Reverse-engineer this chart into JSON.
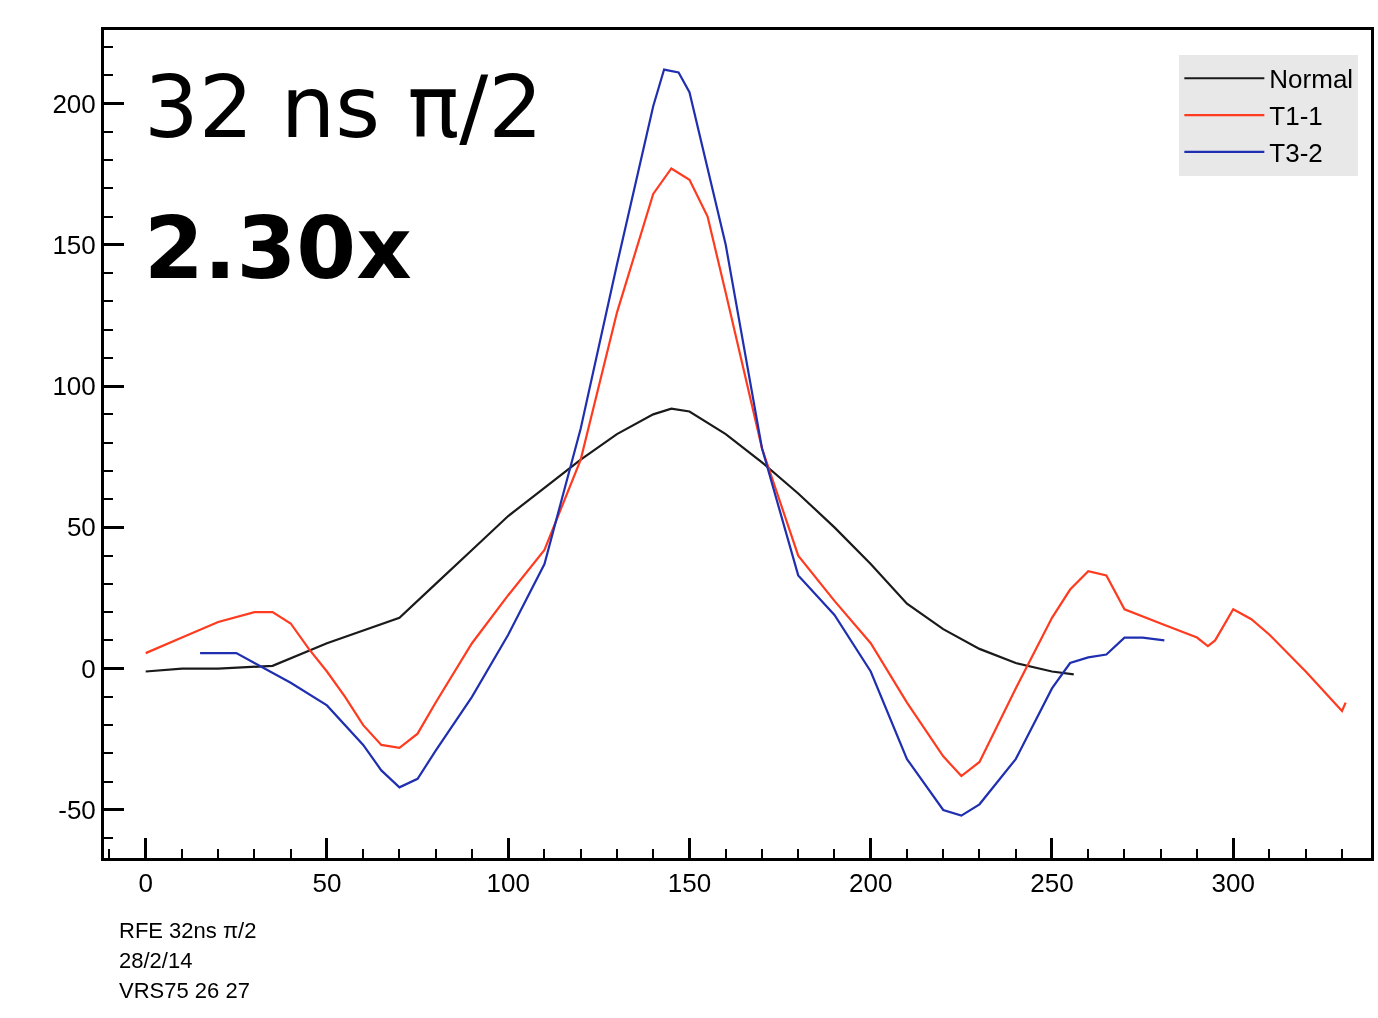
{
  "chart_data": {
    "type": "line",
    "xlim": [
      -11.5,
      338
    ],
    "ylim": [
      -67,
      226
    ],
    "xticks": [
      0,
      50,
      100,
      150,
      200,
      250,
      300
    ],
    "yticks": [
      -50,
      0,
      50,
      100,
      150,
      200
    ],
    "legend": "top right",
    "marker": "none",
    "line_style": "solid",
    "annotations": [
      "32 ns π/2",
      "2.30x",
      "RFE 32ns π/2",
      "28/2/14",
      "VRS75 26 27"
    ],
    "series": [
      {
        "name": "Normal",
        "color": "#1a1a1a",
        "x": [
          0,
          10,
          20,
          35,
          50,
          70,
          80,
          90,
          100,
          110,
          120,
          130,
          140,
          145,
          150,
          160,
          170,
          180,
          190,
          200,
          210,
          220,
          230,
          240,
          250,
          256
        ],
        "values": [
          -1,
          0,
          0,
          1,
          9,
          18,
          30,
          42,
          54,
          64,
          74,
          83,
          90,
          92,
          91,
          83,
          73,
          62,
          50,
          37,
          23,
          14,
          7,
          2,
          -1,
          -2
        ]
      },
      {
        "name": "T1-1",
        "color": "#ff3b1f",
        "x": [
          0,
          10,
          20,
          30,
          35,
          40,
          45,
          50,
          55,
          60,
          65,
          70,
          75,
          80,
          90,
          100,
          110,
          120,
          130,
          140,
          145,
          150,
          155,
          160,
          170,
          180,
          190,
          200,
          210,
          220,
          225,
          230,
          240,
          250,
          255,
          260,
          265,
          270,
          280,
          290,
          293,
          295,
          300,
          305,
          310,
          320,
          330,
          331
        ],
        "values": [
          5.5,
          11,
          16.5,
          20,
          20,
          16,
          7,
          -1,
          -10,
          -20,
          -27,
          -28,
          -23,
          -12,
          9,
          26,
          42,
          74,
          126,
          168,
          177,
          173,
          160,
          133,
          78,
          40,
          24,
          9,
          -12,
          -31,
          -38,
          -33,
          -7,
          18,
          28,
          34.5,
          33,
          21,
          16,
          11,
          8,
          10,
          21,
          17.5,
          12,
          -1,
          -15,
          -12
        ]
      },
      {
        "name": "T3-2",
        "color": "#1f2fb0",
        "x": [
          15,
          25,
          30,
          40,
          50,
          60,
          65,
          70,
          75,
          80,
          90,
          100,
          110,
          120,
          130,
          140,
          143,
          147,
          150,
          160,
          170,
          180,
          190,
          200,
          210,
          220,
          225,
          230,
          240,
          250,
          255,
          260,
          265,
          270,
          275,
          281
        ],
        "values": [
          5.5,
          5.5,
          2,
          -5,
          -13,
          -27,
          -36,
          -42,
          -39,
          -29,
          -10,
          12,
          37,
          85,
          143,
          199,
          212,
          211,
          204,
          150,
          78,
          33,
          19,
          -1,
          -32,
          -50,
          -52,
          -48,
          -32,
          -7,
          2,
          4,
          5,
          11,
          11,
          10
        ]
      }
    ]
  }
}
